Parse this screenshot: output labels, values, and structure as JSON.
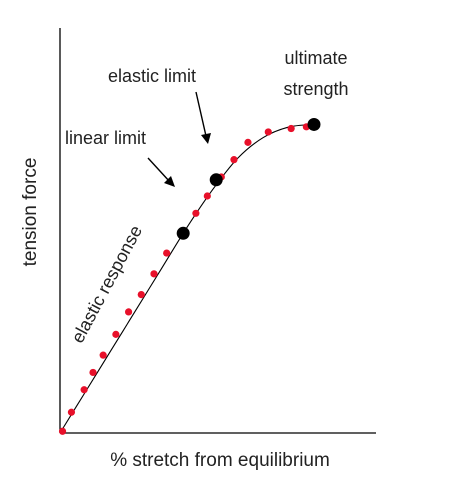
{
  "chart_data": {
    "type": "line",
    "title": "",
    "xlabel": "% stretch from equilibrium",
    "ylabel": "tension force",
    "x_ticks": [],
    "y_ticks": [],
    "grid": false,
    "curve": {
      "x": [
        0,
        10,
        20,
        30,
        40,
        50,
        60,
        70,
        80,
        90,
        100
      ],
      "y": [
        0,
        11,
        22,
        33,
        44,
        55,
        65,
        73.5,
        79,
        81.8,
        82.5
      ]
    },
    "measured_points": {
      "x": [
        1,
        4.5,
        9.5,
        13,
        17,
        22,
        27,
        32,
        37,
        42,
        48,
        53.5,
        58,
        63.5,
        68.5,
        74,
        82,
        91,
        97
      ],
      "y": [
        1,
        12,
        25,
        35,
        45,
        57,
        70,
        80,
        92,
        104,
        115,
        127,
        137,
        148,
        158,
        168,
        174,
        176,
        177
      ]
    },
    "key_points": [
      {
        "label": "linear limit",
        "x": 48.5,
        "y": 53.4
      },
      {
        "label": "elastic limit",
        "x": 61.5,
        "y": 67.7
      },
      {
        "label": "ultimate strength",
        "x": 100,
        "y": 82.5
      }
    ],
    "annotations": [
      {
        "text": "elastic response"
      },
      {
        "text": "linear limit"
      },
      {
        "text": "elastic limit"
      },
      {
        "text": "ultimate",
        "text2": "strength"
      }
    ],
    "colors": {
      "axis": "#000000",
      "curve": "#000000",
      "measured_points": "#e8102a",
      "key_points": "#000000"
    }
  }
}
